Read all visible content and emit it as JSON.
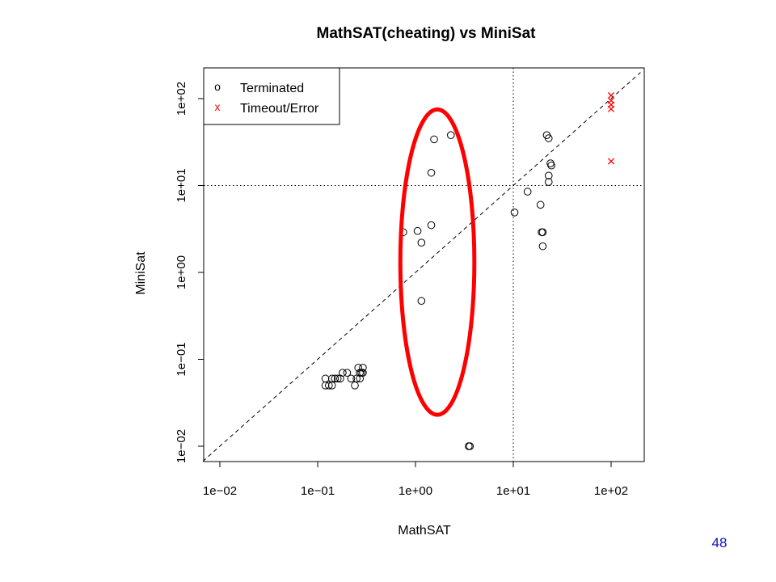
{
  "slide": {
    "page_number": "48"
  },
  "chart_data": {
    "type": "scatter",
    "title": "MathSAT(cheating) vs MiniSat",
    "xlabel": "MathSAT",
    "ylabel": "MiniSat",
    "x_scale": "log10",
    "y_scale": "log10",
    "xlim": [
      0.0067,
      200
    ],
    "ylim": [
      0.0067,
      200
    ],
    "x_ticks": [
      0.01,
      0.1,
      1,
      10,
      100
    ],
    "y_ticks": [
      0.01,
      0.1,
      1,
      10,
      100
    ],
    "x_tick_labels": [
      "1e−02",
      "1e−01",
      "1e+00",
      "1e+01",
      "1e+02"
    ],
    "y_tick_labels": [
      "1e−02",
      "1e−01",
      "1e+00",
      "1e+01",
      "1e+02"
    ],
    "reference_lines": {
      "diagonal_y_equals_x": true,
      "timeout_x": 10,
      "timeout_y": 10
    },
    "legend": {
      "position": "top-left",
      "entries": [
        {
          "symbol": "o",
          "label": "Terminated",
          "color": "#000000"
        },
        {
          "symbol": "x",
          "label": "Timeout/Error",
          "color": "#ff0000"
        }
      ]
    },
    "series": [
      {
        "name": "Terminated",
        "marker": "circle",
        "color": "#000000",
        "points": [
          [
            0.12,
            0.06
          ],
          [
            0.12,
            0.05
          ],
          [
            0.13,
            0.05
          ],
          [
            0.14,
            0.05
          ],
          [
            0.14,
            0.06
          ],
          [
            0.15,
            0.06
          ],
          [
            0.16,
            0.06
          ],
          [
            0.17,
            0.06
          ],
          [
            0.18,
            0.07
          ],
          [
            0.2,
            0.07
          ],
          [
            0.22,
            0.06
          ],
          [
            0.24,
            0.05
          ],
          [
            0.25,
            0.06
          ],
          [
            0.26,
            0.08
          ],
          [
            0.27,
            0.06
          ],
          [
            0.27,
            0.07
          ],
          [
            0.28,
            0.07
          ],
          [
            0.29,
            0.08
          ],
          [
            0.29,
            0.07
          ],
          [
            0.75,
            2.9
          ],
          [
            1.05,
            3.0
          ],
          [
            1.15,
            2.2
          ],
          [
            1.15,
            0.47
          ],
          [
            1.45,
            3.5
          ],
          [
            1.45,
            14
          ],
          [
            1.55,
            34
          ],
          [
            2.3,
            38
          ],
          [
            3.5,
            0.01
          ],
          [
            3.6,
            0.01
          ],
          [
            10.3,
            4.9
          ],
          [
            14,
            8.5
          ],
          [
            19,
            6
          ],
          [
            19.5,
            2.9
          ],
          [
            20,
            2.0
          ],
          [
            20,
            2.9
          ],
          [
            22,
            38
          ],
          [
            23,
            35
          ],
          [
            23,
            13
          ],
          [
            23,
            11
          ],
          [
            24,
            18
          ],
          [
            24.5,
            17
          ]
        ]
      },
      {
        "name": "Timeout/Error",
        "marker": "x",
        "color": "#ff0000",
        "points": [
          [
            100,
            109
          ],
          [
            100,
            95
          ],
          [
            100,
            85
          ],
          [
            100,
            76
          ],
          [
            100,
            19
          ]
        ]
      }
    ],
    "annotation": {
      "shape": "ellipse",
      "color": "#ff0000",
      "center": [
        1.6,
        1.4
      ],
      "x_extent": [
        0.7,
        4.0
      ],
      "y_extent": [
        0.023,
        75
      ]
    }
  }
}
